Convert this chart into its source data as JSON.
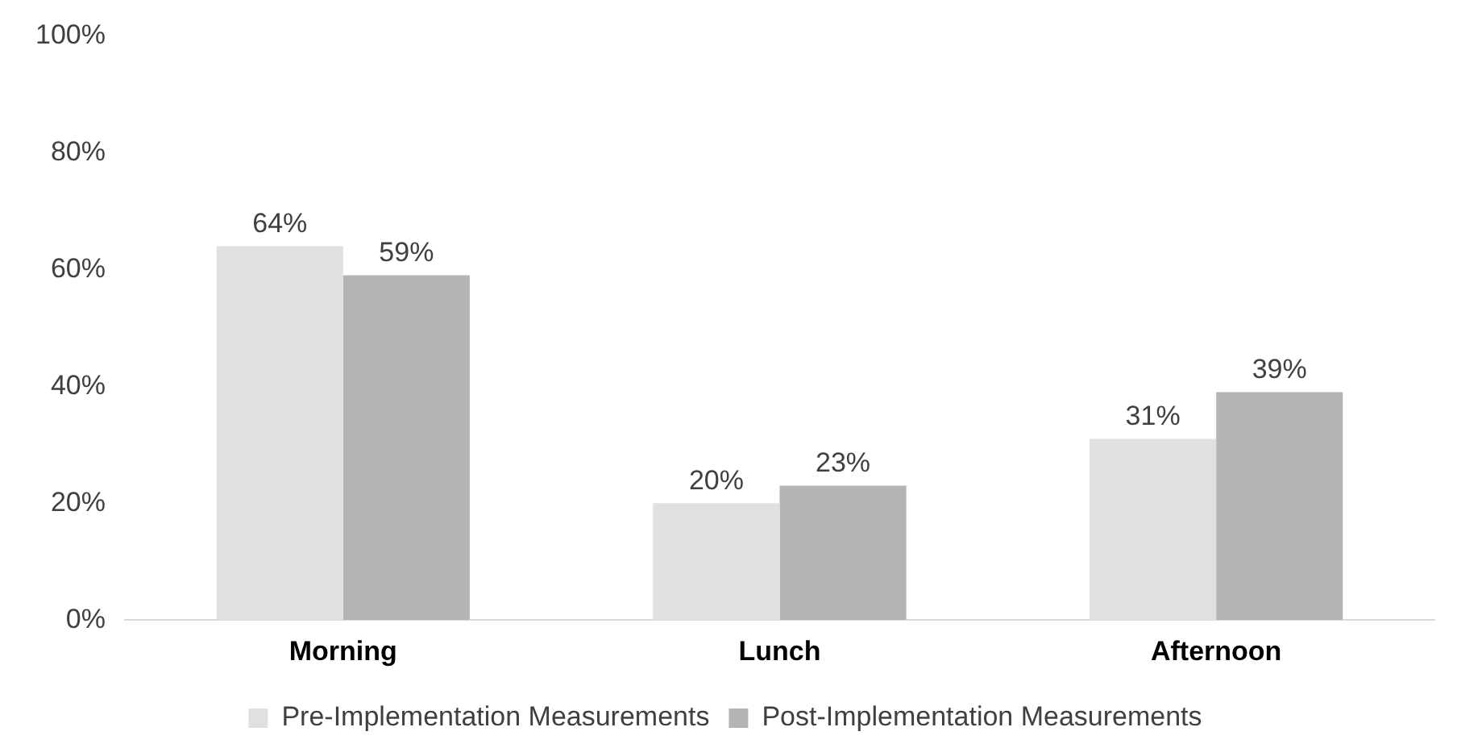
{
  "chart_data": {
    "type": "bar",
    "categories": [
      "Morning",
      "Lunch",
      "Afternoon"
    ],
    "series": [
      {
        "name": "Pre-Implementation Measurements",
        "color": "#e0e0e0",
        "values": [
          64,
          20,
          31
        ]
      },
      {
        "name": "Post-Implementation Measurements",
        "color": "#b4b4b4",
        "values": [
          59,
          23,
          39
        ]
      }
    ],
    "ylim": [
      0,
      100
    ],
    "yticks": [
      {
        "value": 0,
        "label": "0%"
      },
      {
        "value": 20,
        "label": "20%"
      },
      {
        "value": 40,
        "label": "40%"
      },
      {
        "value": 60,
        "label": "60%"
      },
      {
        "value": 80,
        "label": "80%"
      },
      {
        "value": 100,
        "label": "100%"
      }
    ],
    "value_labels": [
      [
        "64%",
        "20%",
        "31%"
      ],
      [
        "59%",
        "23%",
        "39%"
      ]
    ],
    "grid": false,
    "legend": "bottom"
  }
}
